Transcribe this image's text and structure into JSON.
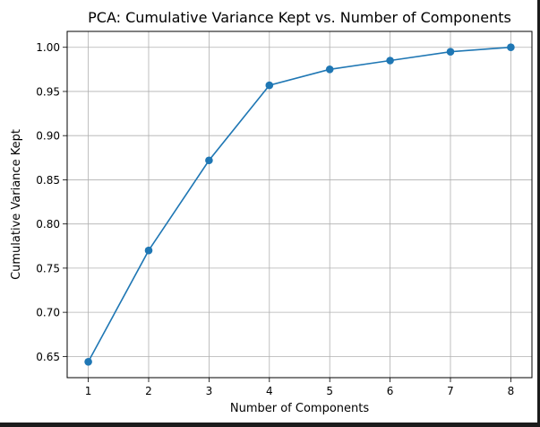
{
  "chart_data": {
    "type": "line",
    "title": "PCA: Cumulative Variance Kept vs. Number of Components",
    "xlabel": "Number of Components",
    "ylabel": "Cumulative Variance Kept",
    "x": [
      1,
      2,
      3,
      4,
      5,
      6,
      7,
      8
    ],
    "series": [
      {
        "values": [
          0.644,
          0.77,
          0.872,
          0.957,
          0.975,
          0.985,
          0.995,
          1.0
        ],
        "color": "#1f77b4",
        "marker": "circle"
      }
    ],
    "xticks": [
      "1",
      "2",
      "3",
      "4",
      "5",
      "6",
      "7",
      "8"
    ],
    "yticks": [
      "0.65",
      "0.70",
      "0.75",
      "0.80",
      "0.85",
      "0.90",
      "0.95",
      "1.00"
    ],
    "xlim": [
      0.65,
      8.35
    ],
    "ylim": [
      0.626,
      1.018
    ],
    "grid": true,
    "legend": "none"
  }
}
